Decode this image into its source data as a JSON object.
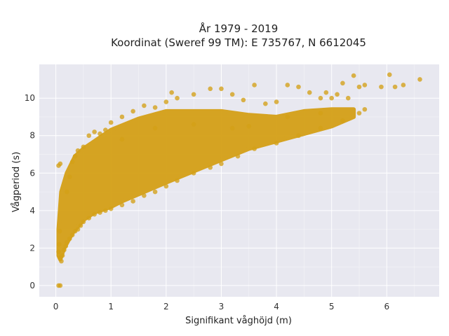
{
  "chart_data": {
    "type": "scatter",
    "title_lines": [
      "År 1979 - 2019",
      "Koordinat (Sweref 99 TM): E 735767, N 6612045"
    ],
    "xlabel": "Signifikant våghöjd (m)",
    "ylabel": "Vågperiod (s)",
    "xlim": [
      -0.3,
      6.95
    ],
    "ylim": [
      -0.6,
      11.8
    ],
    "x_ticks": [
      0,
      1,
      2,
      3,
      4,
      5,
      6
    ],
    "y_ticks": [
      0,
      2,
      4,
      6,
      8,
      10
    ],
    "grid": true,
    "colors": {
      "marker": "#d4a017",
      "plot_bg": "#e8e8f0",
      "grid": "#ffffff"
    },
    "series": [
      {
        "points": [
          [
            0.05,
            0.0
          ],
          [
            0.08,
            0.0
          ],
          [
            0.05,
            1.8
          ],
          [
            0.06,
            2.2
          ],
          [
            0.07,
            2.9
          ],
          [
            0.08,
            1.5
          ],
          [
            0.1,
            1.3
          ],
          [
            0.12,
            1.6
          ],
          [
            0.15,
            1.9
          ],
          [
            0.18,
            2.1
          ],
          [
            0.05,
            6.4
          ],
          [
            0.08,
            6.5
          ],
          [
            0.2,
            2.3
          ],
          [
            0.25,
            2.5
          ],
          [
            0.3,
            2.7
          ],
          [
            0.35,
            2.9
          ],
          [
            0.4,
            3.0
          ],
          [
            0.45,
            3.2
          ],
          [
            0.5,
            3.4
          ],
          [
            0.6,
            3.6
          ],
          [
            0.7,
            3.8
          ],
          [
            0.8,
            3.9
          ],
          [
            0.9,
            4.0
          ],
          [
            1.0,
            4.1
          ],
          [
            1.2,
            4.3
          ],
          [
            1.4,
            4.5
          ],
          [
            1.6,
            4.8
          ],
          [
            1.8,
            5.0
          ],
          [
            2.0,
            5.3
          ],
          [
            2.2,
            5.6
          ],
          [
            2.5,
            6.0
          ],
          [
            2.8,
            6.3
          ],
          [
            3.0,
            6.5
          ],
          [
            3.3,
            6.9
          ],
          [
            3.6,
            7.3
          ],
          [
            4.0,
            7.6
          ],
          [
            4.4,
            8.0
          ],
          [
            4.8,
            8.4
          ],
          [
            5.2,
            8.8
          ],
          [
            5.5,
            9.2
          ],
          [
            5.6,
            9.4
          ],
          [
            0.2,
            5.0
          ],
          [
            0.25,
            5.8
          ],
          [
            0.3,
            6.6
          ],
          [
            0.35,
            6.9
          ],
          [
            0.4,
            7.2
          ],
          [
            0.5,
            7.4
          ],
          [
            0.6,
            8.0
          ],
          [
            0.7,
            8.2
          ],
          [
            0.8,
            8.1
          ],
          [
            0.9,
            8.3
          ],
          [
            1.0,
            8.7
          ],
          [
            1.2,
            9.0
          ],
          [
            1.4,
            9.3
          ],
          [
            1.6,
            9.6
          ],
          [
            1.8,
            9.5
          ],
          [
            2.0,
            9.8
          ],
          [
            2.1,
            10.3
          ],
          [
            2.2,
            10.0
          ],
          [
            2.5,
            10.2
          ],
          [
            2.8,
            10.5
          ],
          [
            3.0,
            10.5
          ],
          [
            3.2,
            10.2
          ],
          [
            3.4,
            9.9
          ],
          [
            3.6,
            10.7
          ],
          [
            3.8,
            9.7
          ],
          [
            4.0,
            9.8
          ],
          [
            4.2,
            10.7
          ],
          [
            4.4,
            10.6
          ],
          [
            4.6,
            10.3
          ],
          [
            4.8,
            10.0
          ],
          [
            4.9,
            10.3
          ],
          [
            5.0,
            10.0
          ],
          [
            5.1,
            10.2
          ],
          [
            5.2,
            10.8
          ],
          [
            5.3,
            10.0
          ],
          [
            5.4,
            11.2
          ],
          [
            5.5,
            10.6
          ],
          [
            5.6,
            10.7
          ],
          [
            5.9,
            10.6
          ],
          [
            6.05,
            11.25
          ],
          [
            6.15,
            10.6
          ],
          [
            6.3,
            10.7
          ],
          [
            6.6,
            11.0
          ],
          [
            1.2,
            7.8
          ],
          [
            1.8,
            8.4
          ],
          [
            2.5,
            8.6
          ],
          [
            3.2,
            8.4
          ],
          [
            3.5,
            8.5
          ],
          [
            4.2,
            9.0
          ],
          [
            4.8,
            9.2
          ]
        ]
      }
    ]
  }
}
